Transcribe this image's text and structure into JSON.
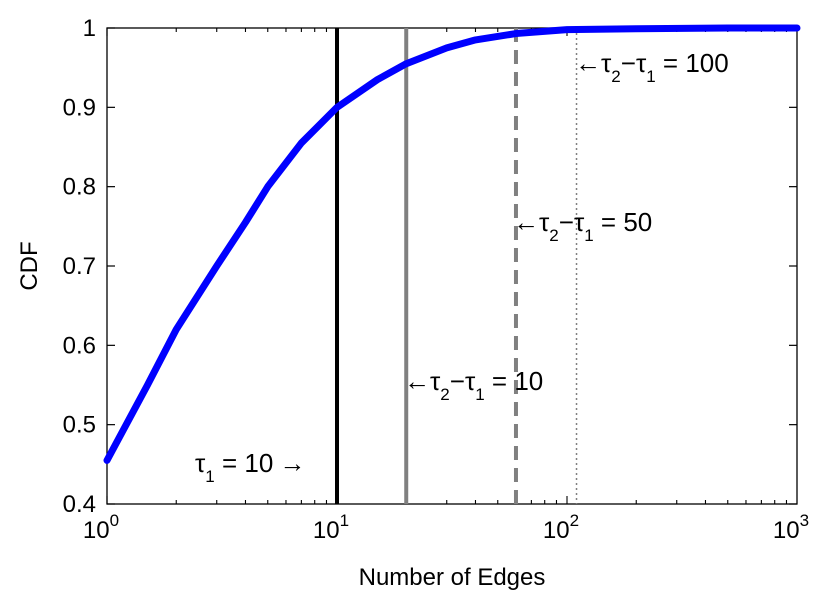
{
  "chart_data": {
    "type": "line",
    "xlabel": "Number of Edges",
    "ylabel": "CDF",
    "xscale": "log",
    "xlim": [
      1,
      1000
    ],
    "ylim": [
      0.4,
      1
    ],
    "grid": false,
    "x_ticks": [
      {
        "value": 1,
        "base": "10",
        "exp": "0"
      },
      {
        "value": 10,
        "base": "10",
        "exp": "1"
      },
      {
        "value": 100,
        "base": "10",
        "exp": "2"
      },
      {
        "value": 1000,
        "base": "10",
        "exp": "3"
      }
    ],
    "y_ticks": [
      "0.4",
      "0.5",
      "0.6",
      "0.7",
      "0.8",
      "0.9",
      "1"
    ],
    "series": [
      {
        "color": "#0000ff",
        "x": [
          1,
          1.5,
          2,
          3,
          4,
          5,
          7,
          10,
          15,
          20,
          30,
          40,
          60,
          100,
          200,
          500,
          1000
        ],
        "y": [
          0.455,
          0.55,
          0.62,
          0.7,
          0.755,
          0.8,
          0.855,
          0.9,
          0.935,
          0.955,
          0.975,
          0.985,
          0.993,
          0.998,
          0.999,
          1.0,
          1.0
        ]
      }
    ],
    "vlines": [
      {
        "x": 10,
        "color": "#000000",
        "style": "solid"
      },
      {
        "x": 20,
        "color": "#808080",
        "style": "solid"
      },
      {
        "x": 60,
        "color": "#808080",
        "style": "dashed"
      },
      {
        "x": 110,
        "color": "#808080",
        "style": "dotted"
      }
    ],
    "annotations": {
      "tau1": {
        "arrow": "→",
        "tau": "τ",
        "sub": "1",
        "rest": " = 10"
      },
      "diff10": {
        "arrow": "←",
        "t2": "τ",
        "s2": "2",
        "minus": "−",
        "t1": "τ",
        "s1": "1",
        "rest": " = 10"
      },
      "diff50": {
        "arrow": "←",
        "t2": "τ",
        "s2": "2",
        "minus": "−",
        "t1": "τ",
        "s1": "1",
        "rest": " = 50"
      },
      "diff100": {
        "arrow": "←",
        "t2": "τ",
        "s2": "2",
        "minus": "−",
        "t1": "τ",
        "s1": "1",
        "rest": " = 100"
      }
    }
  }
}
